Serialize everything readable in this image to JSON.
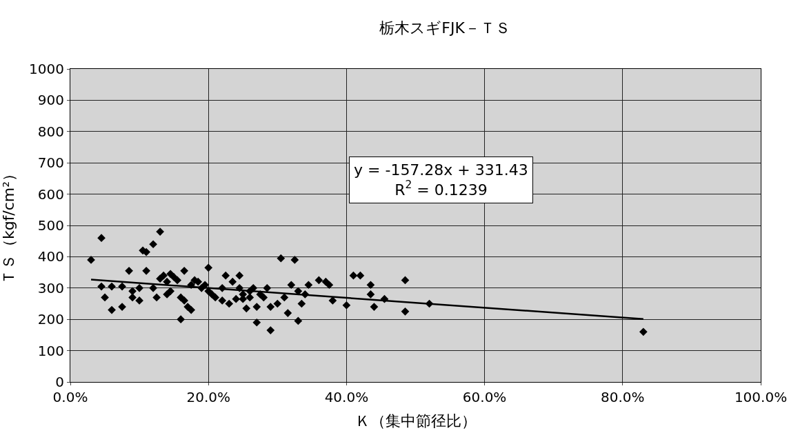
{
  "chart_data": {
    "type": "scatter",
    "title": "栃木スギFJK－ＴＳ",
    "xlabel": "Ｋ（集中節径比）",
    "ylabel": "ＴＳ（kgf/cm²）",
    "annotations": [
      "y = -157.28x + 331.43\nR$^{2}$ = 0.1239"
    ],
    "xlim": [
      0,
      1
    ],
    "xticks": [
      {
        "value": 0,
        "label": "0.0%"
      },
      {
        "value": 0.2,
        "label": "20.0%"
      },
      {
        "value": 0.4,
        "label": "40.0%"
      },
      {
        "value": 0.6,
        "label": "60.0%"
      },
      {
        "value": 0.8,
        "label": "80.0%"
      },
      {
        "value": 1,
        "label": "100.0%"
      }
    ],
    "ylim": [
      0,
      1000
    ],
    "yticks": [
      0,
      100,
      200,
      300,
      400,
      500,
      600,
      700,
      800,
      900,
      1000
    ],
    "grid": true,
    "marker": "diamond",
    "series": [
      {
        "color": "#000000",
        "x": [
          0.03,
          0.045,
          0.045,
          0.05,
          0.06,
          0.06,
          0.075,
          0.075,
          0.085,
          0.09,
          0.09,
          0.1,
          0.1,
          0.105,
          0.11,
          0.11,
          0.12,
          0.12,
          0.125,
          0.13,
          0.13,
          0.135,
          0.14,
          0.14,
          0.145,
          0.145,
          0.15,
          0.155,
          0.16,
          0.16,
          0.165,
          0.165,
          0.17,
          0.175,
          0.175,
          0.18,
          0.185,
          0.19,
          0.195,
          0.2,
          0.2,
          0.205,
          0.21,
          0.22,
          0.22,
          0.225,
          0.23,
          0.235,
          0.24,
          0.245,
          0.245,
          0.25,
          0.25,
          0.255,
          0.26,
          0.26,
          0.265,
          0.27,
          0.27,
          0.275,
          0.28,
          0.285,
          0.29,
          0.29,
          0.3,
          0.305,
          0.31,
          0.315,
          0.32,
          0.325,
          0.33,
          0.33,
          0.335,
          0.34,
          0.345,
          0.36,
          0.37,
          0.375,
          0.38,
          0.4,
          0.41,
          0.42,
          0.435,
          0.435,
          0.44,
          0.455,
          0.485,
          0.485,
          0.52,
          0.83
        ],
        "values": [
          390,
          460,
          305,
          270,
          230,
          305,
          240,
          305,
          355,
          290,
          270,
          300,
          260,
          420,
          415,
          355,
          440,
          300,
          270,
          330,
          480,
          340,
          320,
          280,
          290,
          345,
          335,
          325,
          200,
          270,
          355,
          260,
          240,
          230,
          310,
          325,
          320,
          300,
          310,
          365,
          290,
          280,
          270,
          300,
          260,
          340,
          250,
          320,
          265,
          340,
          300,
          280,
          265,
          235,
          290,
          270,
          300,
          240,
          190,
          280,
          270,
          300,
          165,
          240,
          250,
          395,
          270,
          220,
          310,
          390,
          290,
          195,
          250,
          280,
          310,
          325,
          320,
          310,
          260,
          245,
          340,
          340,
          310,
          280,
          240,
          265,
          325,
          225,
          250,
          160
        ]
      },
      {
        "type": "line",
        "color": "#000000",
        "marker": "none",
        "line_style": "solid",
        "x": [
          0.03,
          0.83
        ],
        "values": [
          327,
          201
        ]
      }
    ]
  }
}
